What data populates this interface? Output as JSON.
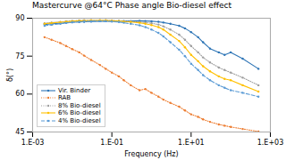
{
  "chart_data": {
    "type": "line",
    "title": "Mastercurve @64°C Phase angle Bio-diesel effect",
    "xlabel": "Frequency (Hz)",
    "ylabel": "δ(°)",
    "log": "x",
    "grid": false,
    "legend": "lower left",
    "xlim": [
      0.001,
      1000
    ],
    "ylim": [
      45,
      90
    ],
    "xticks": [
      {
        "value": 0.001,
        "label": "1.E-03"
      },
      {
        "value": 0.1,
        "label": "1.E-01"
      },
      {
        "value": 10,
        "label": "1.E+01"
      },
      {
        "value": 1000,
        "label": "1.E+03"
      }
    ],
    "yticks": [
      45,
      60,
      75,
      90
    ],
    "x": [
      0.002,
      0.003,
      0.005,
      0.007,
      0.01,
      0.015,
      0.02,
      0.03,
      0.05,
      0.07,
      0.1,
      0.15,
      0.2,
      0.3,
      0.5,
      0.7,
      1.0,
      1.5,
      2.0,
      3.0,
      5.0,
      7.0,
      10,
      15,
      20,
      30,
      50,
      70,
      100,
      200,
      500
    ],
    "series": [
      {
        "name": "Vir. Binder",
        "color": "#2e75b6",
        "line_style": "solid",
        "marker": "circle",
        "values": [
          87.5,
          87.8,
          88.0,
          88.2,
          88.4,
          88.5,
          88.6,
          88.7,
          88.8,
          88.8,
          88.8,
          88.9,
          88.9,
          88.9,
          89.0,
          88.9,
          88.8,
          88.6,
          88.3,
          87.8,
          87.0,
          86.0,
          84.5,
          82.5,
          80.5,
          78.0,
          76.5,
          75.5,
          76.5,
          74.0,
          70.0
        ]
      },
      {
        "name": "RAB",
        "color": "#ed7d31",
        "line_style": "dotted",
        "marker": "circle",
        "values": [
          82.5,
          81.5,
          80.2,
          79.0,
          77.8,
          76.5,
          75.2,
          73.5,
          71.5,
          70.0,
          68.5,
          67.0,
          65.5,
          63.5,
          61.5,
          62.0,
          60.5,
          59.0,
          57.8,
          56.5,
          55.0,
          53.5,
          52.0,
          51.0,
          50.0,
          49.0,
          48.0,
          47.5,
          47.0,
          46.2,
          45.2
        ]
      },
      {
        "name": "8% Bio-diesel",
        "color": "#9e9e9e",
        "line_style": "dotted",
        "marker": "circle",
        "values": [
          88.0,
          88.3,
          88.5,
          88.8,
          89.0,
          89.1,
          89.2,
          89.2,
          89.2,
          89.2,
          89.1,
          89.0,
          88.9,
          88.7,
          88.5,
          88.3,
          88.0,
          87.5,
          86.8,
          85.5,
          83.5,
          81.5,
          79.0,
          76.5,
          74.5,
          72.5,
          70.5,
          69.5,
          68.5,
          66.5,
          63.5
        ]
      },
      {
        "name": "6% Bio-diesel",
        "color": "#ffc000",
        "line_style": "solid",
        "marker": "circle",
        "values": [
          87.8,
          88.1,
          88.4,
          88.6,
          88.8,
          89.0,
          89.0,
          89.1,
          89.1,
          89.1,
          89.0,
          88.9,
          88.7,
          88.5,
          88.2,
          87.8,
          87.3,
          86.5,
          85.5,
          83.5,
          81.0,
          78.5,
          75.5,
          73.0,
          71.0,
          69.0,
          67.0,
          66.0,
          65.5,
          63.5,
          61.0
        ]
      },
      {
        "name": "4% Bio-diesel",
        "color": "#5b9bd5",
        "line_style": "dashed",
        "marker": "circle",
        "values": [
          87.0,
          87.4,
          87.8,
          88.1,
          88.4,
          88.6,
          88.7,
          88.8,
          88.8,
          88.8,
          88.7,
          88.5,
          88.2,
          87.8,
          87.2,
          86.5,
          85.5,
          84.2,
          82.8,
          80.5,
          77.5,
          75.0,
          72.0,
          69.5,
          67.5,
          65.5,
          63.5,
          62.5,
          61.5,
          60.5,
          59.0
        ]
      }
    ]
  }
}
